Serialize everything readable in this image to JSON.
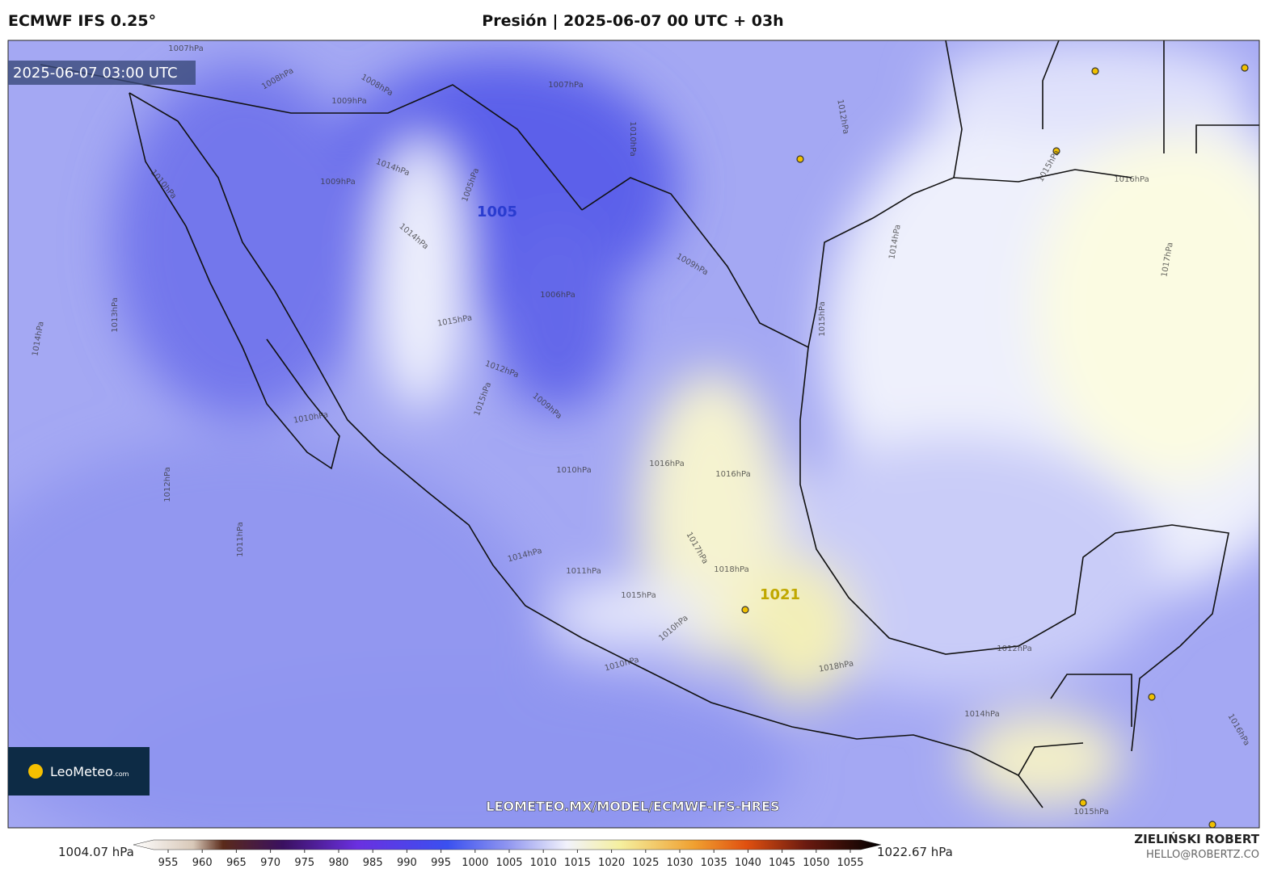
{
  "header": {
    "title_left": "ECMWF IFS 0.25°",
    "title_center": "Presión | 2025-06-07 00 UTC + 03h"
  },
  "map": {
    "timestamp": "2025-06-07 03:00 UTC",
    "watermark": "LEOMETEO.MX/MODEL/ECMWF-IFS-HRES",
    "logo": "LeoMeteo",
    "logo_suffix": ".com",
    "contour_labels": [
      "1007hPa",
      "1008hPa",
      "1009hPa",
      "1008hPa",
      "1007hPa",
      "1010hPa",
      "1012hPa",
      "1014hPa",
      "1009hPa",
      "1005hPa",
      "1005",
      "1010hPa",
      "1014hPa",
      "1009hPa",
      "1006hPa",
      "1015hPa",
      "1013hPa",
      "1014hPa",
      "1015hPa",
      "1014hPa",
      "1016hPa",
      "1015hPa",
      "1017hPa",
      "1012hPa",
      "1015hPa",
      "1009hPa",
      "1010hPa",
      "1016hPa",
      "1016hPa",
      "1010hPa",
      "1012hPa",
      "1011hPa",
      "1014hPa",
      "1011hPa",
      "1018hPa",
      "1017hPa",
      "1021",
      "1015hPa",
      "1010hPa",
      "1010hPa",
      "1018hPa",
      "1012hPa",
      "1014hPa",
      "1015hPa",
      "1016hPa"
    ]
  },
  "colorbar": {
    "min_label": "1004.07 hPa",
    "max_label": "1022.67 hPa",
    "ticks": [
      955,
      960,
      965,
      970,
      975,
      980,
      985,
      990,
      995,
      1000,
      1005,
      1010,
      1015,
      1020,
      1025,
      1030,
      1035,
      1040,
      1045,
      1050,
      1055
    ]
  },
  "footer": {
    "author": "ZIELIŃSKI ROBERT",
    "email": "HELLO@ROBERTZ.CO"
  }
}
